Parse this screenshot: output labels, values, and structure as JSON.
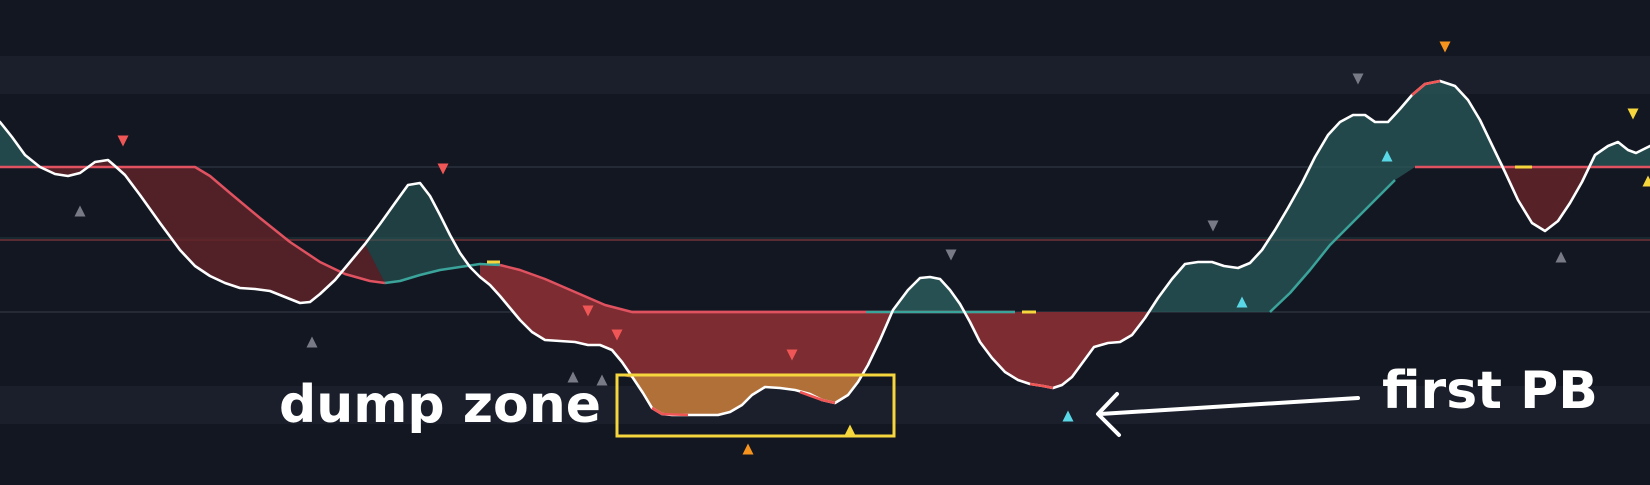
{
  "chart_data": {
    "type": "line",
    "series": [
      {
        "values": []
      }
    ],
    "annotations": [
      {
        "text": "dump zone"
      },
      {
        "text": "first PB"
      }
    ],
    "colors": {
      "background": "#131722",
      "band": "#1a1f2b",
      "oscillator": "#ffffff",
      "bull_fill": "#2a5a5a",
      "bear_fill": "#5e2329",
      "deep_bear_fill": "#832d33",
      "dump_fill": "#b5743a",
      "signal_bear": "#e05260",
      "signal_bull": "#3aa39a",
      "highlight_box": "#f5d63d",
      "marker_red": "#f05656",
      "marker_orange": "#f7941e",
      "marker_yellow": "#f5d63d",
      "marker_cyan": "#59d7e6",
      "marker_gray": "#787b86"
    }
  }
}
